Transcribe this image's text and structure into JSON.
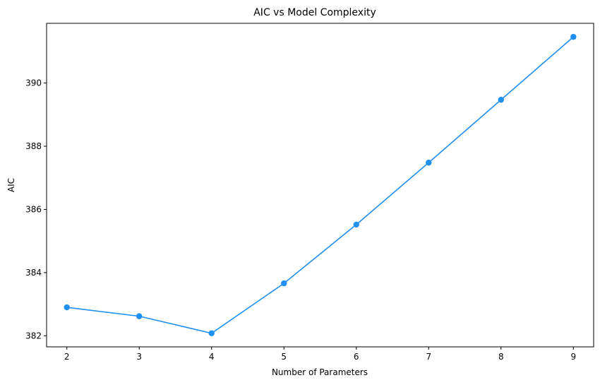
{
  "chart_data": {
    "type": "line",
    "title": "AIC vs Model Complexity",
    "xlabel": "Number of Parameters",
    "ylabel": "AIC",
    "x": [
      2,
      3,
      4,
      5,
      6,
      7,
      8,
      9
    ],
    "series": [
      {
        "values": [
          382.9,
          382.62,
          382.08,
          383.66,
          385.52,
          387.48,
          389.47,
          391.46
        ],
        "color": "#1f8ff0",
        "marker": "circle"
      }
    ],
    "xticks": [
      "2",
      "3",
      "4",
      "5",
      "6",
      "7",
      "8",
      "9"
    ],
    "yticks": [
      "382",
      "384",
      "386",
      "388",
      "390"
    ],
    "xlim": [
      1.72,
      9.28
    ],
    "ylim": [
      381.65,
      391.89
    ],
    "grid": false,
    "legend": "none"
  }
}
